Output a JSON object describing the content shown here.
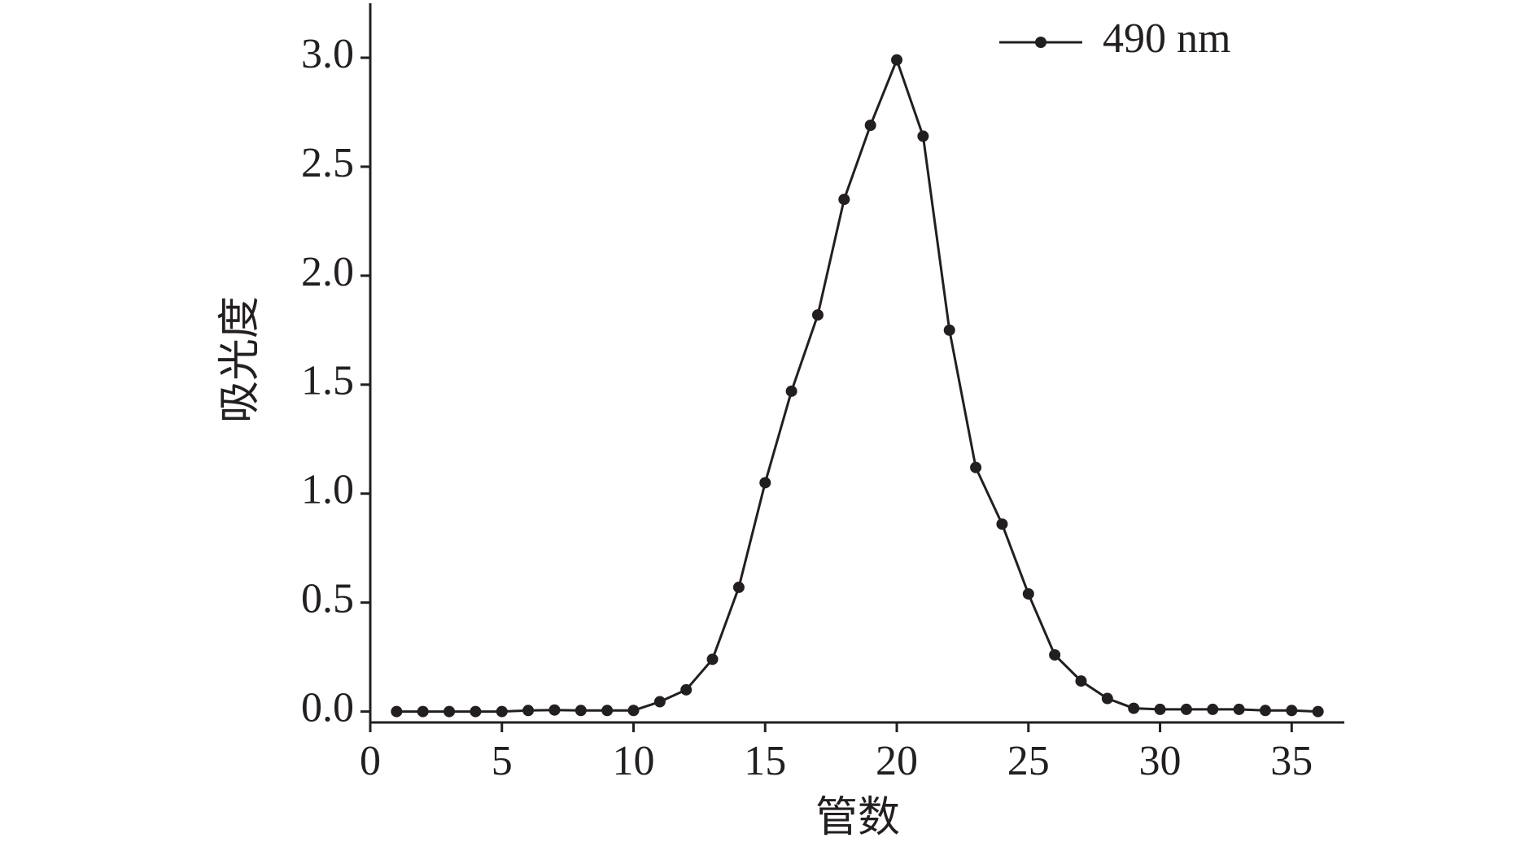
{
  "chart_data": {
    "type": "line",
    "x_label": "管数",
    "y_label": "吸光度",
    "x": [
      1,
      2,
      3,
      4,
      5,
      6,
      7,
      8,
      9,
      10,
      11,
      12,
      13,
      14,
      15,
      16,
      17,
      18,
      19,
      20,
      21,
      22,
      23,
      24,
      25,
      26,
      27,
      28,
      29,
      30,
      31,
      32,
      33,
      34,
      35,
      36
    ],
    "series": [
      {
        "name": "490 nm",
        "color": "#231f20",
        "values": [
          0.0,
          0.0,
          0.0,
          0.0,
          0.0,
          0.005,
          0.007,
          0.005,
          0.005,
          0.005,
          0.045,
          0.1,
          0.24,
          0.57,
          1.05,
          1.47,
          1.82,
          2.35,
          2.69,
          2.99,
          2.64,
          1.75,
          1.12,
          0.86,
          0.54,
          0.26,
          0.14,
          0.06,
          0.015,
          0.01,
          0.01,
          0.01,
          0.01,
          0.005,
          0.005,
          0.0
        ]
      }
    ],
    "xlim": [
      0,
      37
    ],
    "ylim": [
      -0.05,
      3.25
    ],
    "xticks": [
      0,
      5,
      10,
      15,
      20,
      25,
      30,
      35
    ],
    "yticks": [
      {
        "value": 0,
        "label": "0.0"
      },
      {
        "value": 0.5,
        "label": "0.5"
      },
      {
        "value": 1,
        "label": "1.0"
      },
      {
        "value": 1.5,
        "label": "1.5"
      },
      {
        "value": 2,
        "label": "2.0"
      },
      {
        "value": 2.5,
        "label": "2.5"
      },
      {
        "value": 3,
        "label": "3.0"
      }
    ],
    "legend": "top-right"
  }
}
